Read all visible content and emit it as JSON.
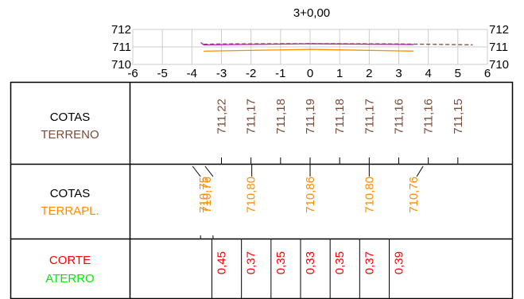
{
  "section_title": "3+0,00",
  "colors": {
    "terrain": "#7a4a3a",
    "embankment": "#ff8c00",
    "cut": "#ff0000",
    "fill": "#00ee00",
    "profile_magenta": "#e000e0",
    "grid": "#cccccc"
  },
  "chart_data": {
    "type": "line",
    "title": "3+0,00",
    "xlim": [
      -6,
      6
    ],
    "ylim": [
      710,
      712
    ],
    "x_ticks": [
      "-6",
      "-5",
      "-4",
      "-3",
      "-2",
      "-1",
      "0",
      "1",
      "2",
      "3",
      "4",
      "5",
      "6"
    ],
    "y_ticks": [
      "712",
      "711",
      "710"
    ],
    "grid": true,
    "series": [
      {
        "x": [
          -3.7,
          -3.6,
          0,
          3.5
        ],
        "y": [
          711.25,
          711.12,
          711.18,
          711.14
        ]
      },
      {
        "x": [
          -3.6,
          -3.0,
          0,
          3.0,
          5.5
        ],
        "y": [
          711.15,
          711.17,
          711.19,
          711.17,
          711.12
        ]
      },
      {
        "x": [
          -3.6,
          -3.5,
          0,
          3.5
        ],
        "y": [
          710.75,
          710.76,
          710.86,
          710.76
        ]
      }
    ]
  },
  "rows": {
    "terreno": {
      "label_line1": "COTAS",
      "label_line2": "TERRENO",
      "values": [
        {
          "x": -3.0,
          "text": "711,22"
        },
        {
          "x": -2.0,
          "text": "711,17"
        },
        {
          "x": -1.0,
          "text": "711,18"
        },
        {
          "x": 0.0,
          "text": "711,19"
        },
        {
          "x": 1.0,
          "text": "711,18"
        },
        {
          "x": 2.0,
          "text": "711,17"
        },
        {
          "x": 3.0,
          "text": "711,16"
        },
        {
          "x": 4.0,
          "text": "711,16"
        },
        {
          "x": 5.0,
          "text": "711,15"
        }
      ]
    },
    "terrapl": {
      "label_line1": "COTAS",
      "label_line2": "TERRAPL.",
      "values": [
        {
          "x": -3.6,
          "text": "710,75"
        },
        {
          "x": -3.5,
          "text": "710,76"
        },
        {
          "x": -2.0,
          "text": "710,80"
        },
        {
          "x": 0.0,
          "text": "710,86"
        },
        {
          "x": 2.0,
          "text": "710,80"
        },
        {
          "x": 3.5,
          "text": "710,76"
        }
      ]
    },
    "corte": {
      "label_line1": "CORTE",
      "label_line2": "ATERRO",
      "values": [
        {
          "x": -3.0,
          "text": "0,45"
        },
        {
          "x": -2.0,
          "text": "0,37"
        },
        {
          "x": -1.0,
          "text": "0,35"
        },
        {
          "x": 0.0,
          "text": "0,33"
        },
        {
          "x": 1.0,
          "text": "0,35"
        },
        {
          "x": 2.0,
          "text": "0,37"
        },
        {
          "x": 3.0,
          "text": "0,39"
        }
      ]
    }
  }
}
